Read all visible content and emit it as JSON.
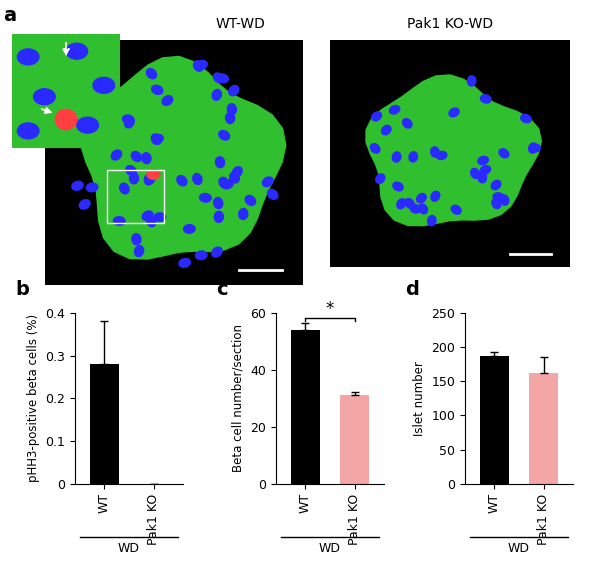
{
  "image_panel": {
    "title": "a",
    "images": [
      {
        "label": "WT-WD"
      },
      {
        "label": "Pak1 KO-WD"
      }
    ]
  },
  "chart_data": [
    {
      "type": "bar",
      "title": "b",
      "categories": [
        "WT",
        "Pak1 KO"
      ],
      "values": [
        0.28,
        0
      ],
      "errors": [
        0.1,
        0
      ],
      "colors": [
        "#000000",
        "#f4a6a6"
      ],
      "ylabel": "pHH3-positive beta cells (%)",
      "xlabel": "WD",
      "ylim": [
        0,
        0.4
      ],
      "yticks": [
        0,
        0.1,
        0.2,
        0.3,
        0.4
      ]
    },
    {
      "type": "bar",
      "title": "c",
      "categories": [
        "WT",
        "Pak1 KO"
      ],
      "values": [
        54,
        31
      ],
      "errors": [
        2.5,
        1.3
      ],
      "colors": [
        "#000000",
        "#f4a6a6"
      ],
      "ylabel": "Beta cell number/section",
      "xlabel": "WD",
      "annotations": [
        "*"
      ],
      "ylim": [
        0,
        60
      ],
      "yticks": [
        0,
        20,
        40,
        60
      ]
    },
    {
      "type": "bar",
      "title": "d",
      "categories": [
        "WT",
        "Pak1 KO"
      ],
      "values": [
        187,
        162
      ],
      "errors": [
        6,
        23
      ],
      "colors": [
        "#000000",
        "#f4a6a6"
      ],
      "ylabel": "Islet number",
      "xlabel": "WD",
      "ylim": [
        0,
        250
      ],
      "yticks": [
        0,
        50,
        100,
        150,
        200,
        250
      ]
    }
  ]
}
